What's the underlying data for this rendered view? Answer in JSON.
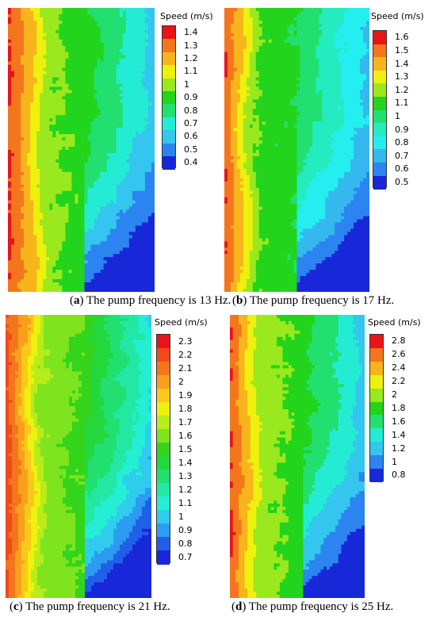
{
  "chart_data": [
    {
      "type": "heatmap",
      "panel": "a",
      "caption_letter": "a",
      "caption_text": "The pump frequency is 13 Hz.",
      "legend_title": "Speed (m/s)",
      "legend_ticks": [
        "1.4",
        "1.3",
        "1.2",
        "1.1",
        "1",
        "0.9",
        "0.8",
        "0.7",
        "0.6",
        "0.5",
        "0.4"
      ],
      "colors": [
        "#e8141a",
        "#f4761c",
        "#f8b41c",
        "#eef00e",
        "#9ae81e",
        "#22d41c",
        "#22e070",
        "#24ecd4",
        "#34c6ee",
        "#2c84f0",
        "#1828d8"
      ],
      "vmin": 0.4,
      "vmax": 1.4
    },
    {
      "type": "heatmap",
      "panel": "b",
      "caption_letter": "b",
      "caption_text": "The pump frequency is 17 Hz.",
      "legend_title": "Speed (m/s)",
      "legend_ticks": [
        "1.6",
        "1.5",
        "1.4",
        "1.3",
        "1.2",
        "1.1",
        "1",
        "0.9",
        "0.8",
        "0.7",
        "0.6",
        "0.5"
      ],
      "colors": [
        "#e8141a",
        "#f4761c",
        "#f8b41c",
        "#eef00e",
        "#9ae81e",
        "#22d41c",
        "#22e070",
        "#24ecc0",
        "#24eef0",
        "#34b8ee",
        "#2c84f0",
        "#1828d8"
      ],
      "vmin": 0.5,
      "vmax": 1.6
    },
    {
      "type": "heatmap",
      "panel": "c",
      "caption_letter": "c",
      "caption_text": "The pump frequency is 21 Hz.",
      "legend_title": "Speed (m/s)",
      "legend_ticks": [
        "2.3",
        "2.2",
        "2.1",
        "2",
        "1.9",
        "1.8",
        "1.7",
        "1.6",
        "1.5",
        "1.4",
        "1.3",
        "1.2",
        "1.1",
        "1",
        "0.9",
        "0.8",
        "0.7"
      ],
      "colors": [
        "#e8141a",
        "#f04a1a",
        "#f4761c",
        "#f8a01c",
        "#f8c81a",
        "#eef00e",
        "#b8ec1a",
        "#7ee41e",
        "#34d41c",
        "#22d83c",
        "#22e070",
        "#22e8a4",
        "#24eed4",
        "#30ccee",
        "#2c9cf0",
        "#2060e8",
        "#1828d8"
      ],
      "vmin": 0.7,
      "vmax": 2.3
    },
    {
      "type": "heatmap",
      "panel": "d",
      "caption_letter": "d",
      "caption_text": "The pump frequency is 25 Hz.",
      "legend_title": "Speed (m/s)",
      "legend_ticks": [
        "2.8",
        "2.6",
        "2.4",
        "2.2",
        "2",
        "1.8",
        "1.6",
        "1.4",
        "1.2",
        "1",
        "0.8"
      ],
      "colors": [
        "#e8141a",
        "#f4761c",
        "#f8b41c",
        "#eef00e",
        "#9ae81e",
        "#22d41c",
        "#22e070",
        "#24ecd4",
        "#34c6ee",
        "#2c84f0",
        "#1828d8"
      ],
      "vmin": 0.8,
      "vmax": 2.8
    }
  ]
}
